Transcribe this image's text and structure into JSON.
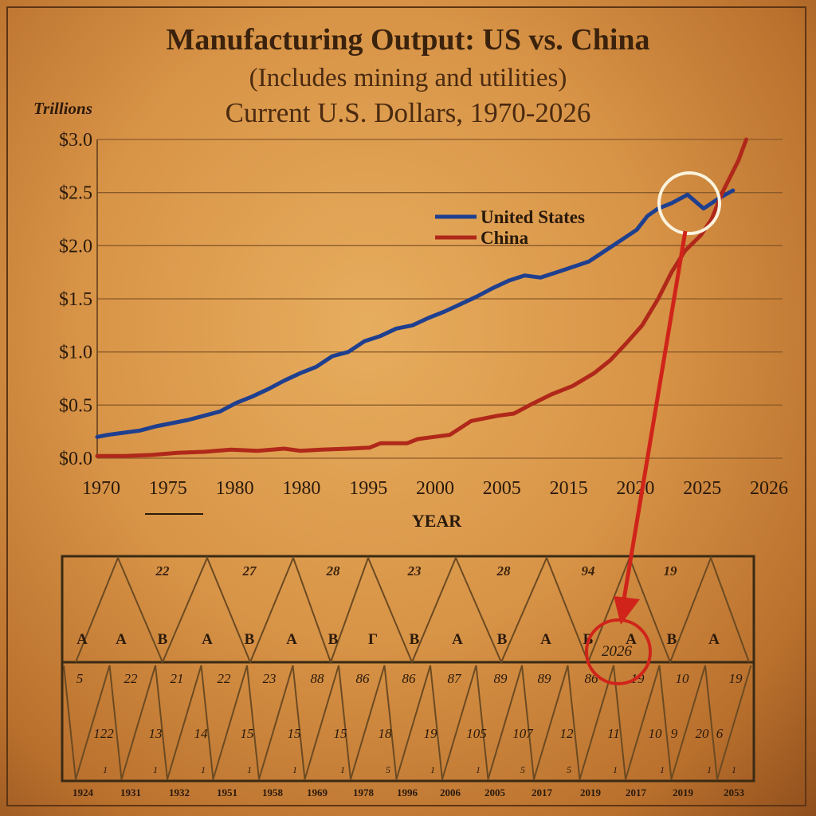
{
  "chart_data": {
    "type": "line",
    "title": "Manufacturing Output: US vs. China",
    "subtitle": "(Includes mining and utilities)",
    "subtitle2": "Current U.S. Dollars, 1970-2026",
    "unit_label": "Trillions",
    "xlabel": "YEAR",
    "ylabel": "",
    "ylim": [
      0,
      3
    ],
    "yticks": [
      "$3.0",
      "$2.5",
      "$2.0",
      "$1.5",
      "$1.0",
      "$0.5",
      "$0.0"
    ],
    "xticks": [
      "1970",
      "1975",
      "1980",
      "1980",
      "1995",
      "2000",
      "2005",
      "2015",
      "2020",
      "2025",
      "2026"
    ],
    "grid": true,
    "legend_position": "upper-middle",
    "series": [
      {
        "name": "United States",
        "color": "#1f3f8f",
        "points": [
          [
            0,
            0.2
          ],
          [
            0.4,
            0.22
          ],
          [
            1.0,
            0.24
          ],
          [
            1.6,
            0.26
          ],
          [
            2.2,
            0.3
          ],
          [
            2.8,
            0.33
          ],
          [
            3.4,
            0.36
          ],
          [
            4.0,
            0.4
          ],
          [
            4.6,
            0.44
          ],
          [
            5.2,
            0.52
          ],
          [
            5.8,
            0.58
          ],
          [
            6.4,
            0.65
          ],
          [
            7.0,
            0.73
          ],
          [
            7.6,
            0.8
          ],
          [
            8.2,
            0.86
          ],
          [
            8.8,
            0.96
          ],
          [
            9.4,
            1.0
          ],
          [
            10.0,
            1.1
          ],
          [
            10.6,
            1.15
          ],
          [
            11.2,
            1.22
          ],
          [
            11.8,
            1.25
          ],
          [
            12.4,
            1.32
          ],
          [
            13.0,
            1.38
          ],
          [
            13.6,
            1.45
          ],
          [
            14.2,
            1.52
          ],
          [
            14.8,
            1.6
          ],
          [
            15.4,
            1.67
          ],
          [
            16.0,
            1.72
          ],
          [
            16.6,
            1.7
          ],
          [
            17.2,
            1.75
          ],
          [
            17.8,
            1.8
          ],
          [
            18.4,
            1.85
          ],
          [
            19.0,
            1.95
          ],
          [
            19.6,
            2.05
          ],
          [
            20.2,
            2.15
          ],
          [
            20.6,
            2.28
          ],
          [
            21.0,
            2.35
          ],
          [
            21.5,
            2.4
          ],
          [
            22.1,
            2.48
          ],
          [
            22.7,
            2.35
          ],
          [
            23.3,
            2.45
          ],
          [
            23.8,
            2.52
          ]
        ]
      },
      {
        "name": "China",
        "color": "#b0281a",
        "points": [
          [
            0,
            0.02
          ],
          [
            1.0,
            0.02
          ],
          [
            2.0,
            0.03
          ],
          [
            3.0,
            0.05
          ],
          [
            4.0,
            0.06
          ],
          [
            5.0,
            0.08
          ],
          [
            6.0,
            0.07
          ],
          [
            7.0,
            0.09
          ],
          [
            7.6,
            0.07
          ],
          [
            8.4,
            0.08
          ],
          [
            9.4,
            0.09
          ],
          [
            10.2,
            0.1
          ],
          [
            10.6,
            0.14
          ],
          [
            11.6,
            0.14
          ],
          [
            12.0,
            0.18
          ],
          [
            12.6,
            0.2
          ],
          [
            13.2,
            0.22
          ],
          [
            14.0,
            0.35
          ],
          [
            15.0,
            0.4
          ],
          [
            15.6,
            0.42
          ],
          [
            16.2,
            0.5
          ],
          [
            17.0,
            0.6
          ],
          [
            17.8,
            0.68
          ],
          [
            18.6,
            0.8
          ],
          [
            19.2,
            0.92
          ],
          [
            19.8,
            1.08
          ],
          [
            20.4,
            1.25
          ],
          [
            21.0,
            1.5
          ],
          [
            21.5,
            1.75
          ],
          [
            22.0,
            1.95
          ],
          [
            22.6,
            2.1
          ],
          [
            23.0,
            2.25
          ],
          [
            23.4,
            2.5
          ],
          [
            24.0,
            2.8
          ],
          [
            24.3,
            3.0
          ]
        ]
      }
    ],
    "annotation": {
      "callout_label": "2026"
    }
  },
  "table": {
    "top_numbers": [
      "22",
      "27",
      "28",
      "23",
      "28",
      "94",
      "19"
    ],
    "letters": [
      "A",
      "A",
      "B",
      "A",
      "B",
      "A",
      "B",
      "Γ",
      "B",
      "A",
      "B",
      "A",
      "B",
      "A",
      "B",
      "A"
    ],
    "mid_numbers": [
      "5",
      "22",
      "21",
      "22",
      "23",
      "88",
      "86",
      "86",
      "87",
      "89",
      "89",
      "86",
      "19",
      "10",
      "19"
    ],
    "low_numbers": [
      "122",
      "13",
      "14",
      "15",
      "15",
      "15",
      "18",
      "19",
      "105",
      "107",
      "12",
      "11",
      "10",
      "9",
      "20",
      "6"
    ],
    "tiny_numbers": [
      "1",
      "1",
      "1",
      "1",
      "1",
      "1",
      "5",
      "1",
      "1",
      "5",
      "5",
      "1",
      "1",
      "1",
      "1"
    ],
    "bottom_years": [
      "1924",
      "1931",
      "1932",
      "1951",
      "1958",
      "1969",
      "1978",
      "1996",
      "2006",
      "2005",
      "2017",
      "2019",
      "2017",
      "2019",
      "2053"
    ]
  }
}
